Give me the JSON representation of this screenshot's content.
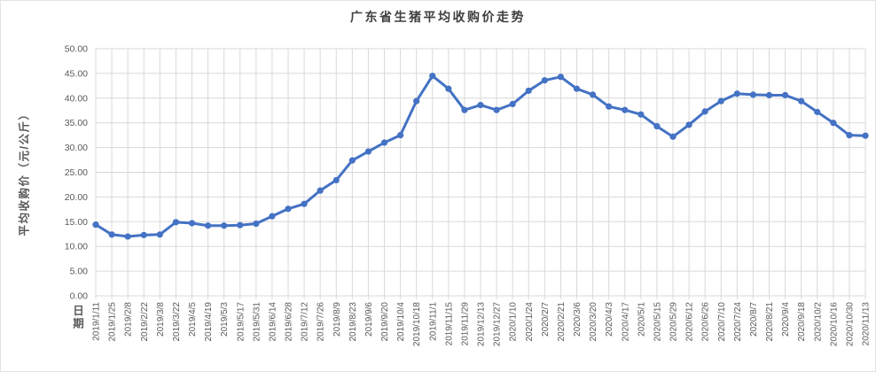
{
  "chart_data": {
    "type": "line",
    "title": "广东省生猪平均收购价走势",
    "xlabel": "日期",
    "ylabel": "平均收购价（元/公斤）",
    "ylim": [
      0,
      50
    ],
    "ytick_step": 5,
    "ytick_labels": [
      "0.00",
      "5.00",
      "10.00",
      "15.00",
      "20.00",
      "25.00",
      "30.00",
      "35.00",
      "40.00",
      "45.00",
      "50.00"
    ],
    "grid": "both",
    "legend_position": "none",
    "line_color": "#4472C4",
    "grid_color": "#D9D9D9",
    "axis_text_color": "#595959",
    "title_color": "#3F3F3F",
    "categories": [
      "2019/1/11",
      "2019/1/25",
      "2019/2/8",
      "2019/2/22",
      "2019/3/8",
      "2019/3/22",
      "2019/4/5",
      "2019/4/19",
      "2019/5/3",
      "2019/5/17",
      "2019/5/31",
      "2019/6/14",
      "2019/6/28",
      "2019/7/12",
      "2019/7/26",
      "2019/8/9",
      "2019/8/23",
      "2019/9/6",
      "2019/9/20",
      "2019/10/4",
      "2019/10/18",
      "2019/11/1",
      "2019/11/15",
      "2019/11/29",
      "2019/12/13",
      "2019/12/27",
      "2020/1/10",
      "2020/1/24",
      "2020/2/7",
      "2020/2/21",
      "2020/3/6",
      "2020/3/20",
      "2020/4/3",
      "2020/4/17",
      "2020/5/1",
      "2020/5/15",
      "2020/5/29",
      "2020/6/12",
      "2020/6/26",
      "2020/7/10",
      "2020/7/24",
      "2020/8/7",
      "2020/8/21",
      "2020/9/4",
      "2020/9/18",
      "2020/10/2",
      "2020/10/16",
      "2020/10/30",
      "2020/11/13"
    ],
    "values": [
      14.4,
      12.4,
      12.0,
      12.3,
      12.4,
      14.9,
      14.7,
      14.2,
      14.2,
      14.3,
      14.6,
      16.1,
      17.6,
      18.6,
      21.3,
      23.4,
      27.4,
      29.2,
      31.0,
      32.5,
      39.4,
      44.5,
      41.9,
      37.6,
      38.6,
      37.6,
      38.8,
      41.5,
      43.6,
      44.3,
      41.9,
      40.7,
      38.3,
      37.6,
      36.7,
      34.3,
      32.2,
      34.6,
      37.3,
      39.4,
      40.9,
      40.7,
      40.6,
      40.6,
      39.4,
      37.2,
      35.0,
      32.5,
      32.4
    ]
  }
}
